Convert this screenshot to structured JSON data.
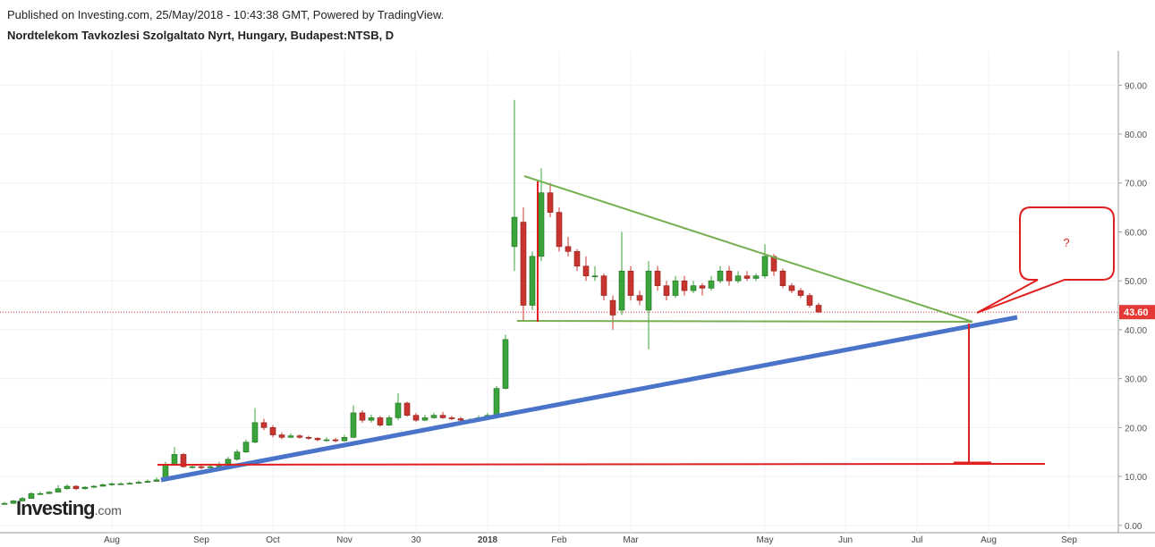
{
  "header": {
    "published": "Published on Investing.com, 25/May/2018 - 10:43:38 GMT, Powered by TradingView.",
    "symbol": "Nordtelekom Tavkozlesi Szolgaltato Nyrt, Hungary, Budapest:NTSB, D"
  },
  "watermark": {
    "name": "Investing",
    "domain": ".com"
  },
  "annotation": {
    "callout": "?"
  },
  "chart_data": {
    "type": "candlestick",
    "up_color": "#3aa33a",
    "down_color": "#c8342f",
    "grid": true,
    "last": {
      "value": 43.6,
      "label": "43.60"
    },
    "last_color": "#e53935",
    "ylim": [
      -1.5,
      97
    ],
    "yticks": [
      {
        "value": 0,
        "label": "0.00"
      },
      {
        "value": 10,
        "label": "10.00"
      },
      {
        "value": 20,
        "label": "20.00"
      },
      {
        "value": 30,
        "label": "30.00"
      },
      {
        "value": 40,
        "label": "40.00"
      },
      {
        "value": 50,
        "label": "50.00"
      },
      {
        "value": 60,
        "label": "60.00"
      },
      {
        "value": 70,
        "label": "70.00"
      },
      {
        "value": 80,
        "label": "80.00"
      },
      {
        "value": 90,
        "label": "90.00"
      }
    ],
    "categories": [
      null,
      null,
      null,
      null,
      null,
      null,
      null,
      null,
      null,
      null,
      null,
      null,
      "Aug",
      null,
      null,
      null,
      null,
      null,
      null,
      null,
      null,
      null,
      "Sep",
      null,
      null,
      null,
      null,
      null,
      null,
      null,
      "Oct",
      null,
      null,
      null,
      null,
      null,
      null,
      null,
      "Nov",
      null,
      null,
      null,
      null,
      null,
      null,
      null,
      "30",
      null,
      null,
      null,
      null,
      null,
      null,
      null,
      "2018",
      null,
      null,
      null,
      null,
      null,
      null,
      null,
      "Feb",
      null,
      null,
      null,
      null,
      null,
      null,
      null,
      "Mar",
      null,
      null,
      null,
      null,
      null,
      null,
      null,
      null,
      null,
      null,
      null,
      null,
      null,
      null,
      "May",
      null,
      null,
      null,
      null,
      null,
      null,
      null,
      null,
      "Jun",
      null,
      null,
      null,
      null,
      null,
      null,
      null,
      "Jul",
      null,
      null,
      null,
      null,
      null,
      null,
      null,
      "Aug",
      null,
      null,
      null,
      null,
      null,
      null,
      null,
      null,
      "Sep",
      null,
      null,
      null,
      null
    ],
    "values": [
      [
        4.3,
        4.8,
        4.2,
        4.5
      ],
      [
        4.5,
        5.2,
        4.4,
        5
      ],
      [
        5,
        5.8,
        4.9,
        5.5
      ],
      [
        5.5,
        6.8,
        5.4,
        6.5
      ],
      [
        6.5,
        6.9,
        6.2,
        6.5
      ],
      [
        6.5,
        7,
        6.4,
        6.8
      ],
      [
        6.8,
        8.2,
        6.7,
        7.5
      ],
      [
        7.5,
        8.4,
        7.3,
        8
      ],
      [
        8,
        8.2,
        7.2,
        7.5
      ],
      [
        7.5,
        8,
        7.3,
        7.8
      ],
      [
        7.8,
        8.2,
        7.6,
        8
      ],
      [
        8,
        8.6,
        7.9,
        8.3
      ],
      [
        8.3,
        8.8,
        8.1,
        8.5
      ],
      [
        8.5,
        8.8,
        8.3,
        8.5
      ],
      [
        8.5,
        8.9,
        8.4,
        8.6
      ],
      [
        8.6,
        9.2,
        8.5,
        8.8
      ],
      [
        8.8,
        9.4,
        8.7,
        9
      ],
      [
        9,
        9.8,
        8.9,
        9.3
      ],
      [
        9.3,
        13,
        9.2,
        12.5
      ],
      [
        12.5,
        16,
        12.2,
        14.5
      ],
      [
        14.5,
        14.8,
        11.8,
        12
      ],
      [
        12,
        12.5,
        11.6,
        12
      ],
      [
        12,
        12.3,
        11.4,
        11.8
      ],
      [
        11.8,
        12.4,
        11.5,
        12
      ],
      [
        12,
        13,
        11.8,
        12.5
      ],
      [
        12.5,
        14,
        12.3,
        13.5
      ],
      [
        13.5,
        15.5,
        13.2,
        15
      ],
      [
        15,
        17.5,
        14.8,
        17
      ],
      [
        17,
        24,
        16.8,
        21
      ],
      [
        21,
        21.8,
        19.5,
        20
      ],
      [
        20,
        20.5,
        18,
        18.5
      ],
      [
        18.5,
        19,
        17.6,
        18
      ],
      [
        18,
        18.8,
        17.8,
        18.3
      ],
      [
        18.3,
        18.6,
        17.7,
        18
      ],
      [
        18,
        18.3,
        17.5,
        17.8
      ],
      [
        17.8,
        18,
        17.2,
        17.5
      ],
      [
        17.5,
        18,
        17.1,
        17.5
      ],
      [
        17.5,
        17.9,
        17,
        17.3
      ],
      [
        17.3,
        18.5,
        17.1,
        18
      ],
      [
        18,
        24.5,
        17.8,
        23
      ],
      [
        23,
        23.5,
        21,
        21.5
      ],
      [
        21.5,
        22.6,
        21,
        22
      ],
      [
        22,
        22.4,
        20.2,
        20.5
      ],
      [
        20.5,
        22.5,
        20.3,
        22
      ],
      [
        22,
        27,
        21.5,
        25
      ],
      [
        25,
        25.3,
        22.2,
        22.5
      ],
      [
        22.5,
        23,
        21.2,
        21.5
      ],
      [
        21.5,
        22.6,
        21.3,
        22
      ],
      [
        22,
        23,
        21.8,
        22.5
      ],
      [
        22.5,
        23.2,
        21.8,
        22
      ],
      [
        22,
        22.4,
        21.5,
        21.8
      ],
      [
        21.8,
        22.2,
        21.2,
        21.5
      ],
      [
        21.5,
        21.9,
        21.2,
        21.5
      ],
      [
        21.5,
        22.5,
        21.3,
        22
      ],
      [
        22,
        23,
        21.8,
        22.5
      ],
      [
        22.5,
        28.5,
        22.3,
        28
      ],
      [
        28,
        39,
        27.8,
        38
      ],
      [
        57,
        87,
        52,
        63
      ],
      [
        62,
        65,
        42,
        45
      ],
      [
        45,
        56,
        44,
        55
      ],
      [
        55,
        73,
        54,
        68
      ],
      [
        68,
        70,
        63,
        64
      ],
      [
        64,
        65,
        56,
        57
      ],
      [
        57,
        59,
        55,
        56
      ],
      [
        56,
        56.5,
        52,
        53
      ],
      [
        53,
        55,
        50,
        51
      ],
      [
        51,
        53,
        50,
        51
      ],
      [
        51,
        51.5,
        46,
        47
      ],
      [
        46,
        47,
        40,
        43
      ],
      [
        44,
        60,
        43,
        52
      ],
      [
        52,
        53,
        46,
        47
      ],
      [
        47,
        48,
        45,
        46
      ],
      [
        44,
        54,
        36,
        52
      ],
      [
        52,
        53,
        48,
        49
      ],
      [
        49,
        50,
        46,
        47
      ],
      [
        47,
        51,
        46.5,
        50
      ],
      [
        50,
        51,
        47,
        48
      ],
      [
        48,
        50,
        47.5,
        49
      ],
      [
        49,
        49.5,
        47,
        48.5
      ],
      [
        48.5,
        51,
        48,
        50
      ],
      [
        50,
        53,
        49.5,
        52
      ],
      [
        52,
        53,
        49,
        50
      ],
      [
        50,
        52,
        49.5,
        51
      ],
      [
        51,
        52,
        50,
        50.5
      ],
      [
        50.5,
        51.5,
        50,
        51
      ],
      [
        51,
        57.5,
        50.5,
        55
      ],
      [
        55,
        55.5,
        51,
        52
      ],
      [
        52,
        52.5,
        48.5,
        49
      ],
      [
        49,
        49.5,
        47.5,
        48
      ],
      [
        48,
        48.5,
        46.5,
        47
      ],
      [
        47,
        47.5,
        44.5,
        45
      ],
      [
        45,
        45.5,
        43.4,
        43.6
      ],
      null,
      null,
      null,
      null,
      null,
      null,
      null,
      null,
      null,
      null,
      null,
      null,
      null,
      null,
      null,
      null,
      null,
      null,
      null,
      null,
      null,
      null,
      null,
      null,
      null,
      null,
      null,
      null,
      null,
      null,
      null,
      null
    ]
  }
}
